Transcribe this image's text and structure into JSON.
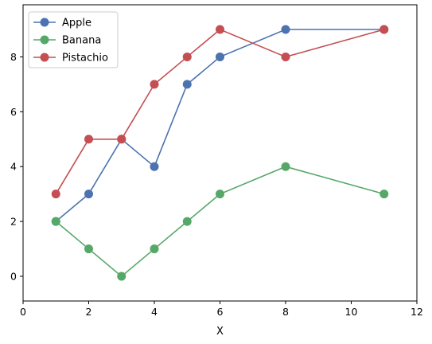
{
  "chart_data": {
    "type": "line",
    "title": "",
    "xlabel": "X",
    "ylabel": "",
    "xlim": [
      0,
      12
    ],
    "ylim": [
      -0.9,
      9.9
    ],
    "xticks": [
      0,
      2,
      4,
      6,
      8,
      10,
      12
    ],
    "yticks": [
      0,
      2,
      4,
      6,
      8
    ],
    "grid": false,
    "legend_position": "top-left",
    "x": [
      1,
      2,
      3,
      4,
      5,
      6,
      8,
      11
    ],
    "series": [
      {
        "name": "Apple",
        "color": "#4c72b0",
        "values": [
          2,
          3,
          5,
          4,
          7,
          8,
          9,
          9
        ]
      },
      {
        "name": "Banana",
        "color": "#55a868",
        "values": [
          2,
          1,
          0,
          1,
          2,
          3,
          4,
          3
        ]
      },
      {
        "name": "Pistachio",
        "color": "#c44e52",
        "values": [
          3,
          5,
          5,
          7,
          8,
          9,
          8,
          9
        ]
      }
    ]
  }
}
